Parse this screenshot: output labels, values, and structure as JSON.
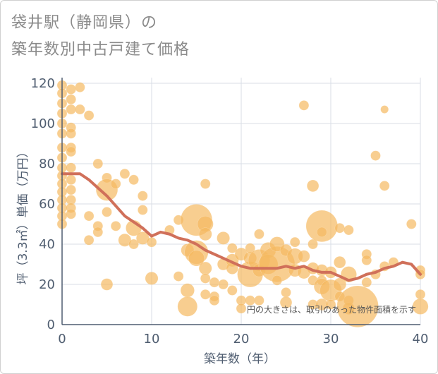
{
  "title_line1": "袋井駅（静岡県）の",
  "title_line2": "築年数別中古戸建て価格",
  "note": "円の大きさは、取引のあった物件面積を示す",
  "colors": {
    "bubble": "#f5b961",
    "line": "#d0705a",
    "grid": "#d8dde6",
    "axis": "#4f5d70"
  },
  "chart_data": {
    "type": "scatter",
    "xlabel": "築年数（年）",
    "ylabel": "坪（3.3㎡）単価（万円）",
    "xlim": [
      0,
      40
    ],
    "ylim": [
      0,
      120
    ],
    "xticks": [
      0,
      10,
      20,
      30,
      40
    ],
    "yticks": [
      0,
      20,
      40,
      60,
      80,
      100,
      120
    ],
    "bubbles": [
      {
        "x": 0,
        "y": 119,
        "s": 1
      },
      {
        "x": 0,
        "y": 115,
        "s": 1
      },
      {
        "x": 0,
        "y": 110,
        "s": 1
      },
      {
        "x": 0,
        "y": 105,
        "s": 1
      },
      {
        "x": 0,
        "y": 100,
        "s": 1
      },
      {
        "x": 0,
        "y": 95,
        "s": 1
      },
      {
        "x": 0,
        "y": 88,
        "s": 1
      },
      {
        "x": 0,
        "y": 83,
        "s": 1
      },
      {
        "x": 0,
        "y": 78,
        "s": 1
      },
      {
        "x": 0,
        "y": 74,
        "s": 1
      },
      {
        "x": 0,
        "y": 70,
        "s": 1
      },
      {
        "x": 0,
        "y": 66,
        "s": 1
      },
      {
        "x": 0,
        "y": 62,
        "s": 1
      },
      {
        "x": 0,
        "y": 58,
        "s": 1
      },
      {
        "x": 0,
        "y": 54,
        "s": 1
      },
      {
        "x": 0,
        "y": 50,
        "s": 1
      },
      {
        "x": 1,
        "y": 117,
        "s": 1
      },
      {
        "x": 1,
        "y": 112,
        "s": 1
      },
      {
        "x": 1,
        "y": 107,
        "s": 1
      },
      {
        "x": 1,
        "y": 98,
        "s": 1
      },
      {
        "x": 1,
        "y": 95,
        "s": 1
      },
      {
        "x": 1,
        "y": 88,
        "s": 1
      },
      {
        "x": 1,
        "y": 86,
        "s": 1
      },
      {
        "x": 1,
        "y": 78,
        "s": 1
      },
      {
        "x": 1,
        "y": 72,
        "s": 1
      },
      {
        "x": 1,
        "y": 67,
        "s": 1
      },
      {
        "x": 1,
        "y": 62,
        "s": 1
      },
      {
        "x": 1,
        "y": 58,
        "s": 1
      },
      {
        "x": 1,
        "y": 55,
        "s": 1
      },
      {
        "x": 2,
        "y": 118,
        "s": 1
      },
      {
        "x": 2,
        "y": 107,
        "s": 1
      },
      {
        "x": 3,
        "y": 104,
        "s": 1
      },
      {
        "x": 4,
        "y": 80,
        "s": 1
      },
      {
        "x": 5,
        "y": 73,
        "s": 1
      },
      {
        "x": 5,
        "y": 67,
        "s": 2.2
      },
      {
        "x": 6,
        "y": 70,
        "s": 1
      },
      {
        "x": 7,
        "y": 75,
        "s": 1
      },
      {
        "x": 8,
        "y": 72,
        "s": 1
      },
      {
        "x": 9,
        "y": 64,
        "s": 1
      },
      {
        "x": 9,
        "y": 57,
        "s": 1
      },
      {
        "x": 3,
        "y": 54,
        "s": 1
      },
      {
        "x": 5,
        "y": 56,
        "s": 1
      },
      {
        "x": 4,
        "y": 49,
        "s": 1
      },
      {
        "x": 4,
        "y": 46,
        "s": 1
      },
      {
        "x": 6,
        "y": 49,
        "s": 1
      },
      {
        "x": 3,
        "y": 42,
        "s": 1
      },
      {
        "x": 7,
        "y": 42,
        "s": 1.3
      },
      {
        "x": 8,
        "y": 48,
        "s": 1.6
      },
      {
        "x": 8,
        "y": 40,
        "s": 1
      },
      {
        "x": 9,
        "y": 43,
        "s": 1.3
      },
      {
        "x": 10,
        "y": 41,
        "s": 1
      },
      {
        "x": 5,
        "y": 20,
        "s": 1.2
      },
      {
        "x": 10,
        "y": 23,
        "s": 1.3
      },
      {
        "x": 12,
        "y": 47,
        "s": 1
      },
      {
        "x": 13,
        "y": 52,
        "s": 1
      },
      {
        "x": 13,
        "y": 24,
        "s": 1
      },
      {
        "x": 14,
        "y": 37,
        "s": 1.3
      },
      {
        "x": 14,
        "y": 17,
        "s": 1.4
      },
      {
        "x": 14,
        "y": 9,
        "s": 2
      },
      {
        "x": 15,
        "y": 52,
        "s": 3.2
      },
      {
        "x": 15,
        "y": 36,
        "s": 2.4
      },
      {
        "x": 15,
        "y": 33,
        "s": 1.6
      },
      {
        "x": 16,
        "y": 70,
        "s": 1
      },
      {
        "x": 16,
        "y": 50,
        "s": 1.6
      },
      {
        "x": 16,
        "y": 45,
        "s": 1.3
      },
      {
        "x": 16,
        "y": 28,
        "s": 1.3
      },
      {
        "x": 16,
        "y": 23,
        "s": 1
      },
      {
        "x": 16,
        "y": 15,
        "s": 1
      },
      {
        "x": 17,
        "y": 21,
        "s": 1
      },
      {
        "x": 17,
        "y": 14,
        "s": 1
      },
      {
        "x": 17,
        "y": 12,
        "s": 1
      },
      {
        "x": 18,
        "y": 43,
        "s": 1.3
      },
      {
        "x": 18,
        "y": 30,
        "s": 1.2
      },
      {
        "x": 18,
        "y": 20,
        "s": 1
      },
      {
        "x": 19,
        "y": 38,
        "s": 1
      },
      {
        "x": 19,
        "y": 32,
        "s": 1.3
      },
      {
        "x": 19,
        "y": 28,
        "s": 1.2
      },
      {
        "x": 19,
        "y": 17,
        "s": 1
      },
      {
        "x": 20,
        "y": 35,
        "s": 1.3
      },
      {
        "x": 20,
        "y": 12,
        "s": 1
      },
      {
        "x": 20,
        "y": 8,
        "s": 1
      },
      {
        "x": 21,
        "y": 25,
        "s": 2.6
      },
      {
        "x": 21,
        "y": 33,
        "s": 1.3
      },
      {
        "x": 21,
        "y": 38,
        "s": 1
      },
      {
        "x": 21,
        "y": 12,
        "s": 1
      },
      {
        "x": 22,
        "y": 32,
        "s": 2.2
      },
      {
        "x": 22,
        "y": 45,
        "s": 1
      },
      {
        "x": 22,
        "y": 27,
        "s": 1.3
      },
      {
        "x": 22,
        "y": 12,
        "s": 1
      },
      {
        "x": 23,
        "y": 37,
        "s": 1.6
      },
      {
        "x": 23,
        "y": 30,
        "s": 2
      },
      {
        "x": 24,
        "y": 30,
        "s": 3.6
      },
      {
        "x": 24,
        "y": 40,
        "s": 1.5
      },
      {
        "x": 24,
        "y": 22,
        "s": 1
      },
      {
        "x": 25,
        "y": 16,
        "s": 1
      },
      {
        "x": 25,
        "y": 11,
        "s": 1.2
      },
      {
        "x": 25,
        "y": 37,
        "s": 1.2
      },
      {
        "x": 26,
        "y": 41,
        "s": 1
      },
      {
        "x": 26,
        "y": 34,
        "s": 1.6
      },
      {
        "x": 26,
        "y": 27,
        "s": 1.3
      },
      {
        "x": 27,
        "y": 109,
        "s": 1
      },
      {
        "x": 27,
        "y": 34,
        "s": 1.2
      },
      {
        "x": 27,
        "y": 26,
        "s": 1.3
      },
      {
        "x": 28,
        "y": 69,
        "s": 1.2
      },
      {
        "x": 28,
        "y": 40,
        "s": 1
      },
      {
        "x": 28,
        "y": 28,
        "s": 1.2
      },
      {
        "x": 28,
        "y": 22,
        "s": 1
      },
      {
        "x": 28,
        "y": 10,
        "s": 1
      },
      {
        "x": 29,
        "y": 49,
        "s": 3.2
      },
      {
        "x": 29,
        "y": 46,
        "s": 1
      },
      {
        "x": 29,
        "y": 27,
        "s": 1.2
      },
      {
        "x": 29,
        "y": 22,
        "s": 1
      },
      {
        "x": 29,
        "y": 19,
        "s": 1.6
      },
      {
        "x": 29,
        "y": 10,
        "s": 1.2
      },
      {
        "x": 30,
        "y": 17,
        "s": 2.2
      },
      {
        "x": 30,
        "y": 26,
        "s": 1.2
      },
      {
        "x": 30,
        "y": 10,
        "s": 1
      },
      {
        "x": 31,
        "y": 48,
        "s": 1
      },
      {
        "x": 31,
        "y": 31,
        "s": 1.2
      },
      {
        "x": 31,
        "y": 20,
        "s": 1.3
      },
      {
        "x": 31,
        "y": 14,
        "s": 1
      },
      {
        "x": 32,
        "y": 47,
        "s": 1
      },
      {
        "x": 32,
        "y": 25,
        "s": 1.6
      },
      {
        "x": 32,
        "y": 12,
        "s": 1
      },
      {
        "x": 32,
        "y": 8,
        "s": 1.2
      },
      {
        "x": 33,
        "y": 9,
        "s": 4.2
      },
      {
        "x": 34,
        "y": 35,
        "s": 1
      },
      {
        "x": 34,
        "y": 32,
        "s": 1
      },
      {
        "x": 34,
        "y": 21,
        "s": 1
      },
      {
        "x": 35,
        "y": 84,
        "s": 1
      },
      {
        "x": 35,
        "y": 25,
        "s": 1
      },
      {
        "x": 36,
        "y": 107,
        "s": 0.8
      },
      {
        "x": 36,
        "y": 69,
        "s": 1
      },
      {
        "x": 36,
        "y": 29,
        "s": 1
      },
      {
        "x": 37,
        "y": 31,
        "s": 1
      },
      {
        "x": 39,
        "y": 50,
        "s": 1
      },
      {
        "x": 40,
        "y": 27,
        "s": 1
      },
      {
        "x": 40,
        "y": 25,
        "s": 1
      },
      {
        "x": 40,
        "y": 15,
        "s": 1
      },
      {
        "x": 40,
        "y": 9,
        "s": 1.6
      }
    ],
    "trend": {
      "x": [
        0,
        1,
        2,
        3,
        4,
        5,
        6,
        7,
        8,
        9,
        10,
        11,
        12,
        13,
        14,
        15,
        16,
        17,
        18,
        19,
        20,
        21,
        22,
        23,
        24,
        25,
        26,
        27,
        28,
        29,
        30,
        31,
        32,
        33,
        34,
        35,
        36,
        37,
        38,
        39,
        40
      ],
      "y": [
        75,
        75,
        75,
        72,
        68,
        64,
        59,
        54,
        51,
        48,
        44,
        46,
        45,
        43,
        42,
        40,
        37,
        35,
        33,
        31,
        29,
        28,
        28,
        28,
        28,
        29,
        28,
        29,
        27,
        26,
        26,
        24,
        22,
        23,
        25,
        26,
        28,
        29,
        31,
        30,
        25
      ]
    }
  }
}
